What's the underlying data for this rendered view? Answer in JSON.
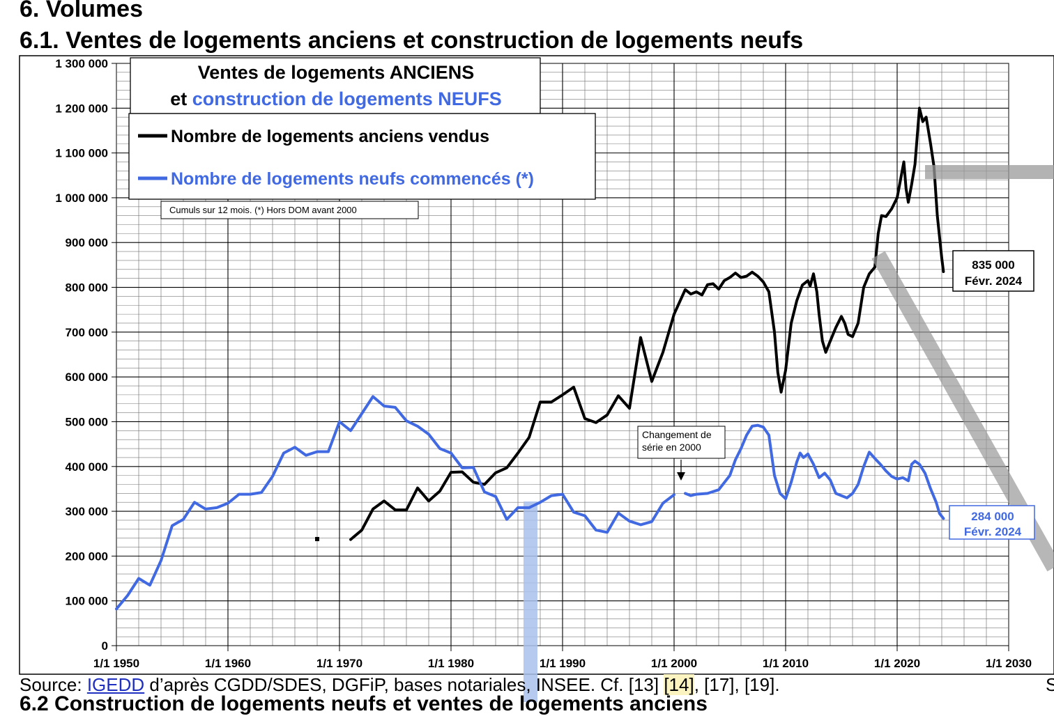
{
  "page": {
    "section_title": "6. Volumes",
    "subsection_title": "6.1. Ventes de logements anciens et construction de logements neufs",
    "source": {
      "prefix": "Source: ",
      "link": "IGEDD",
      "middle": " d’après CGDD/SDES, DGFiP, bases notariales, INSEE. Cf. [13] ",
      "highlight": "[14]",
      "suffix": ", [17], [19].",
      "right_edge": "S",
      "cut_line": "6.2 Construction de logements neufs et ventes de logements anciens"
    }
  },
  "colors": {
    "anciens": "#000000",
    "neufs": "#4169e1",
    "grid": "#000000",
    "annotation_gray": "#999999",
    "highlight_bar": "#a9c1ec"
  },
  "chart_data": {
    "type": "line",
    "title_line1": "Ventes de logements ANCIENS",
    "title_line2_prefix": "et ",
    "title_line2_colored": "construction de logements NEUFS",
    "note": "Cumuls sur 12 mois.  (*) Hors DOM avant 2000",
    "annotation": [
      "Changement de",
      "série en 2000"
    ],
    "xlim": [
      1950,
      2030
    ],
    "ylim": [
      0,
      1300000
    ],
    "x_ticks": [
      {
        "x": 1950,
        "label": "1/1 1950"
      },
      {
        "x": 1960,
        "label": "1/1 1960"
      },
      {
        "x": 1970,
        "label": "1/1 1970"
      },
      {
        "x": 1980,
        "label": "1/1 1980"
      },
      {
        "x": 1990,
        "label": "1/1 1990"
      },
      {
        "x": 2000,
        "label": "1/1 2000"
      },
      {
        "x": 2010,
        "label": "1/1 2010"
      },
      {
        "x": 2020,
        "label": "1/1 2020"
      },
      {
        "x": 2030,
        "label": "1/1 2030"
      }
    ],
    "y_ticks": [
      {
        "y": 0,
        "label": "0"
      },
      {
        "y": 100000,
        "label": "100 000"
      },
      {
        "y": 200000,
        "label": "200 000"
      },
      {
        "y": 300000,
        "label": "300 000"
      },
      {
        "y": 400000,
        "label": "400 000"
      },
      {
        "y": 500000,
        "label": "500 000"
      },
      {
        "y": 600000,
        "label": "600 000"
      },
      {
        "y": 700000,
        "label": "700 000"
      },
      {
        "y": 800000,
        "label": "800 000"
      },
      {
        "y": 900000,
        "label": "900 000"
      },
      {
        "y": 1000000,
        "label": "1 000 000"
      },
      {
        "y": 1100000,
        "label": "1 100 000"
      },
      {
        "y": 1200000,
        "label": "1 200 000"
      },
      {
        "y": 1300000,
        "label": "1 300 000"
      }
    ],
    "series": [
      {
        "name": "Nombre de logements anciens vendus",
        "color": "#000000",
        "end_label": [
          "835 000",
          "Févr. 2024"
        ],
        "segments": [
          [
            [
              1971,
              237000
            ],
            [
              1972,
              258000
            ],
            [
              1973,
              305000
            ],
            [
              1974,
              323000
            ],
            [
              1975,
              303000
            ],
            [
              1976,
              303000
            ],
            [
              1977,
              352000
            ],
            [
              1978,
              323000
            ],
            [
              1979,
              345000
            ],
            [
              1980,
              387000
            ],
            [
              1981,
              388000
            ],
            [
              1982,
              365000
            ],
            [
              1983,
              360000
            ],
            [
              1984,
              386000
            ],
            [
              1985,
              397000
            ],
            [
              1986,
              430000
            ],
            [
              1987,
              465000
            ],
            [
              1988,
              544000
            ],
            [
              1989,
              544000
            ],
            [
              1990,
              560000
            ],
            [
              1991,
              577000
            ],
            [
              1992,
              507000
            ],
            [
              1993,
              498000
            ],
            [
              1994,
              515000
            ],
            [
              1995,
              558000
            ],
            [
              1996,
              530000
            ],
            [
              1997,
              688000
            ],
            [
              1998,
              590000
            ],
            [
              1999,
              655000
            ],
            [
              2000,
              740000
            ],
            [
              2001,
              795000
            ],
            [
              2001.5,
              785000
            ],
            [
              2002,
              790000
            ],
            [
              2002.5,
              783000
            ],
            [
              2003,
              806000
            ],
            [
              2003.5,
              808000
            ],
            [
              2004,
              796000
            ],
            [
              2004.5,
              815000
            ],
            [
              2005,
              822000
            ],
            [
              2005.5,
              832000
            ],
            [
              2006,
              822000
            ],
            [
              2006.5,
              825000
            ],
            [
              2007,
              834000
            ],
            [
              2007.5,
              825000
            ],
            [
              2008,
              812000
            ],
            [
              2008.5,
              790000
            ],
            [
              2009,
              700000
            ],
            [
              2009.3,
              610000
            ],
            [
              2009.6,
              566000
            ],
            [
              2010,
              615000
            ],
            [
              2010.5,
              720000
            ],
            [
              2011,
              770000
            ],
            [
              2011.5,
              805000
            ],
            [
              2012,
              815000
            ],
            [
              2012.2,
              803000
            ],
            [
              2012.5,
              830000
            ],
            [
              2012.8,
              790000
            ],
            [
              2013,
              740000
            ],
            [
              2013.3,
              680000
            ],
            [
              2013.6,
              655000
            ],
            [
              2014,
              680000
            ],
            [
              2014.5,
              710000
            ],
            [
              2015,
              735000
            ],
            [
              2015.3,
              720000
            ],
            [
              2015.6,
              695000
            ],
            [
              2016,
              690000
            ],
            [
              2016.5,
              720000
            ],
            [
              2017,
              800000
            ],
            [
              2017.5,
              830000
            ],
            [
              2018,
              845000
            ],
            [
              2018.3,
              920000
            ],
            [
              2018.6,
              960000
            ],
            [
              2019,
              958000
            ],
            [
              2019.5,
              975000
            ],
            [
              2020,
              1000000
            ],
            [
              2020.3,
              1040000
            ],
            [
              2020.6,
              1080000
            ],
            [
              2020.8,
              1020000
            ],
            [
              2021,
              990000
            ],
            [
              2021.3,
              1030000
            ],
            [
              2021.6,
              1075000
            ],
            [
              2022,
              1200000
            ],
            [
              2022.3,
              1170000
            ],
            [
              2022.6,
              1180000
            ],
            [
              2023,
              1120000
            ],
            [
              2023.3,
              1070000
            ],
            [
              2023.6,
              960000
            ],
            [
              2024,
              865000
            ],
            [
              2024.15,
              835000
            ]
          ]
        ]
      },
      {
        "name": "Nombre de logements neufs commencés (*)",
        "color": "#4169e1",
        "end_label": [
          "284 000",
          "Févr. 2024"
        ],
        "segments": [
          [
            [
              1950,
              82000
            ],
            [
              1951,
              112000
            ],
            [
              1952,
              150000
            ],
            [
              1953,
              135000
            ],
            [
              1954,
              190000
            ],
            [
              1955,
              268000
            ],
            [
              1956,
              282000
            ],
            [
              1957,
              320000
            ],
            [
              1958,
              305000
            ],
            [
              1959,
              308000
            ],
            [
              1960,
              318000
            ],
            [
              1961,
              338000
            ],
            [
              1962,
              338000
            ],
            [
              1963,
              342000
            ],
            [
              1964,
              378000
            ],
            [
              1965,
              430000
            ],
            [
              1966,
              443000
            ],
            [
              1967,
              425000
            ],
            [
              1968,
              433000
            ],
            [
              1969,
              433000
            ],
            [
              1970,
              500000
            ],
            [
              1971,
              480000
            ],
            [
              1972,
              518000
            ],
            [
              1973,
              556000
            ],
            [
              1974,
              535000
            ],
            [
              1975,
              532000
            ],
            [
              1976,
              502000
            ],
            [
              1977,
              490000
            ],
            [
              1978,
              472000
            ],
            [
              1979,
              440000
            ],
            [
              1980,
              430000
            ],
            [
              1981,
              397000
            ],
            [
              1982,
              398000
            ],
            [
              1983,
              343000
            ],
            [
              1984,
              333000
            ],
            [
              1985,
              282000
            ],
            [
              1986,
              308000
            ],
            [
              1987,
              308000
            ],
            [
              1988,
              320000
            ],
            [
              1989,
              335000
            ],
            [
              1990,
              338000
            ],
            [
              1991,
              298000
            ],
            [
              1992,
              290000
            ],
            [
              1993,
              258000
            ],
            [
              1994,
              253000
            ],
            [
              1995,
              296000
            ],
            [
              1996,
              278000
            ],
            [
              1997,
              270000
            ],
            [
              1998,
              277000
            ],
            [
              1999,
              318000
            ],
            [
              2000,
              337000
            ]
          ],
          [
            [
              2001,
              340000
            ],
            [
              2001.5,
              335000
            ],
            [
              2002,
              338000
            ],
            [
              2003,
              340000
            ],
            [
              2004,
              348000
            ],
            [
              2005,
              380000
            ],
            [
              2005.5,
              415000
            ],
            [
              2006,
              440000
            ],
            [
              2006.5,
              470000
            ],
            [
              2007,
              490000
            ],
            [
              2007.5,
              492000
            ],
            [
              2008,
              488000
            ],
            [
              2008.5,
              470000
            ],
            [
              2009,
              380000
            ],
            [
              2009.5,
              340000
            ],
            [
              2010,
              328000
            ],
            [
              2010.5,
              365000
            ],
            [
              2011,
              410000
            ],
            [
              2011.3,
              430000
            ],
            [
              2011.6,
              420000
            ],
            [
              2012,
              428000
            ],
            [
              2012.5,
              405000
            ],
            [
              2013,
              375000
            ],
            [
              2013.5,
              385000
            ],
            [
              2014,
              370000
            ],
            [
              2014.5,
              340000
            ],
            [
              2015,
              335000
            ],
            [
              2015.5,
              330000
            ],
            [
              2016,
              340000
            ],
            [
              2016.5,
              360000
            ],
            [
              2017,
              400000
            ],
            [
              2017.5,
              432000
            ],
            [
              2018,
              418000
            ],
            [
              2018.5,
              405000
            ],
            [
              2019,
              390000
            ],
            [
              2019.5,
              378000
            ],
            [
              2020,
              372000
            ],
            [
              2020.5,
              375000
            ],
            [
              2021,
              368000
            ],
            [
              2021.3,
              405000
            ],
            [
              2021.6,
              412000
            ],
            [
              2022,
              405000
            ],
            [
              2022.5,
              385000
            ],
            [
              2023,
              350000
            ],
            [
              2023.5,
              320000
            ],
            [
              2023.8,
              295000
            ],
            [
              2024.15,
              284000
            ]
          ]
        ]
      }
    ],
    "stray_point": [
      1968,
      238000
    ],
    "legend_position": "top-left",
    "grid": true
  }
}
